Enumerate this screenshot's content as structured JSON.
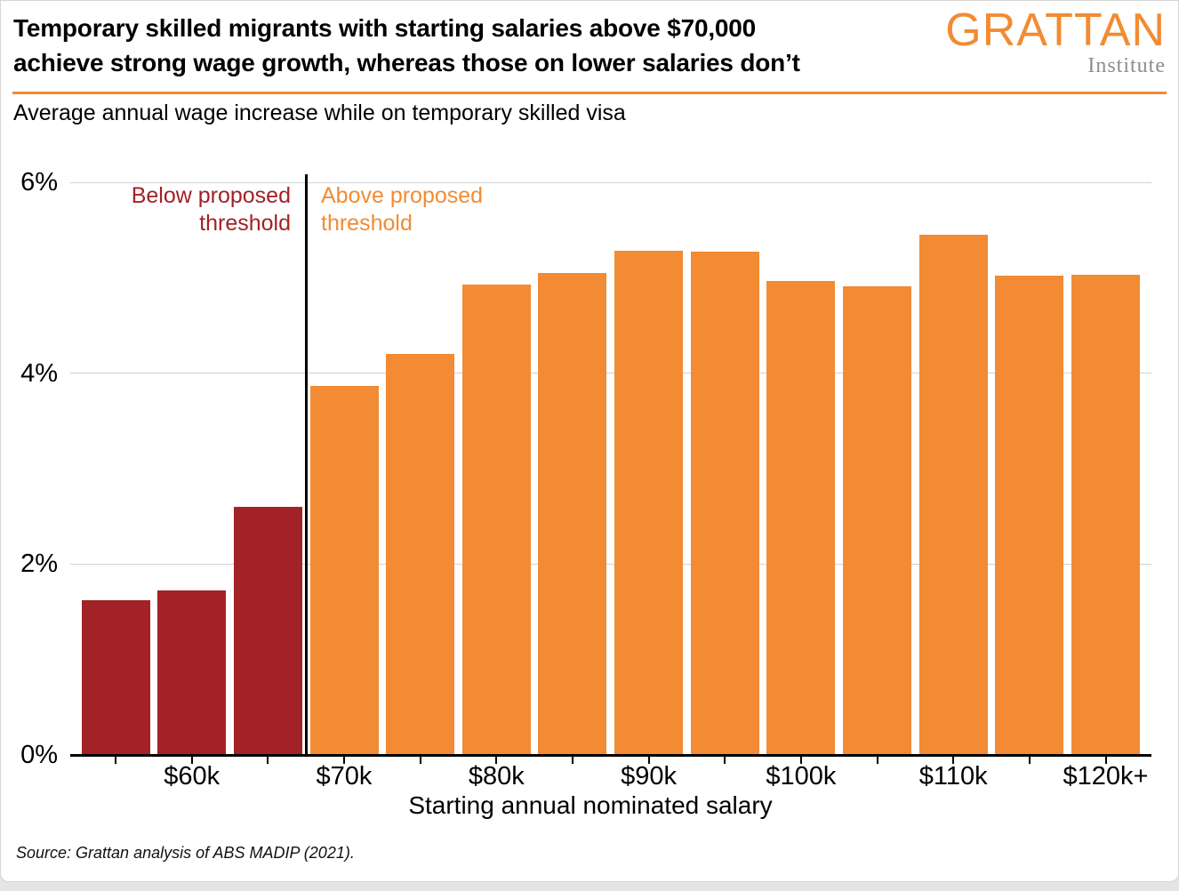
{
  "header": {
    "title_line1": "Temporary skilled migrants with starting salaries above $70,000",
    "title_line2": "achieve strong wage growth, whereas those on lower salaries don’t",
    "logo": {
      "wordmark": "GRATTAN",
      "subtext": "Institute"
    }
  },
  "subtitle": "Average annual wage increase while on temporary skilled visa",
  "footer": {
    "source": "Source: Grattan analysis of ABS MADIP (2021)."
  },
  "colors": {
    "accent_orange": "#F28B33",
    "below_red": "#A22226",
    "institute_gray": "#8A8D91",
    "gridline": "#D1D1D1",
    "axis_black": "#000000"
  },
  "chart_data": {
    "type": "bar",
    "title": "Average annual wage increase while on temporary skilled visa",
    "xlabel": "Starting annual nominated salary",
    "ylabel": "",
    "ylim": [
      0,
      6
    ],
    "grid": true,
    "legend": "none",
    "yticks": [
      {
        "value": 0,
        "label": "0%"
      },
      {
        "value": 2,
        "label": "2%"
      },
      {
        "value": 4,
        "label": "4%"
      },
      {
        "value": 6,
        "label": "6%"
      }
    ],
    "x_tick_labels": [
      "",
      "$60k",
      "",
      "$70k",
      "",
      "$80k",
      "",
      "$90k",
      "",
      "$100k",
      "",
      "$110k",
      "",
      "$120k+"
    ],
    "values": [
      1.62,
      1.72,
      2.6,
      3.87,
      4.2,
      4.93,
      5.05,
      5.28,
      5.27,
      4.97,
      4.91,
      5.45,
      5.02,
      5.03
    ],
    "threshold_index": 3,
    "color_below": "#A22226",
    "color_above": "#F28B33",
    "annotations": {
      "below": {
        "line1": "Below proposed",
        "line2": "threshold"
      },
      "above": {
        "line1": "Above proposed",
        "line2": "threshold"
      }
    }
  }
}
